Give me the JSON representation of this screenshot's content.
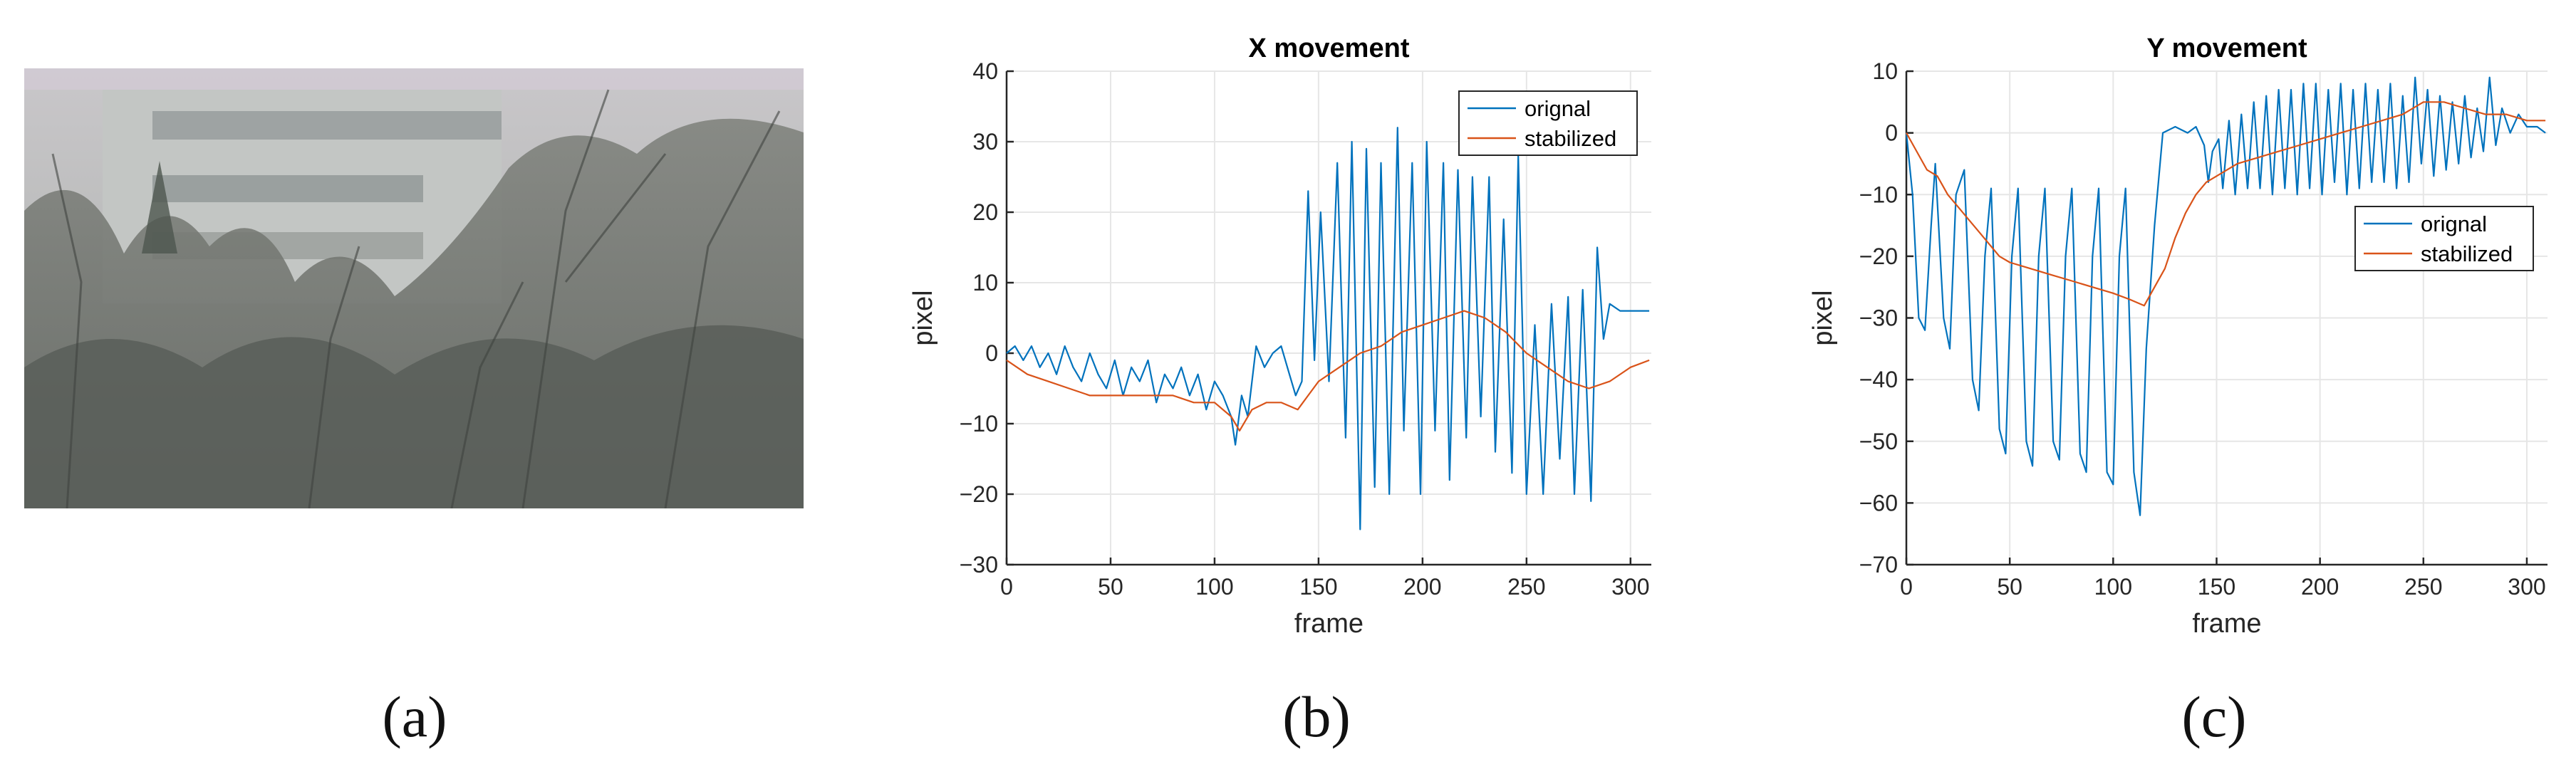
{
  "panels": {
    "a": "(a)",
    "b": "(b)",
    "c": "(c)"
  },
  "colors": {
    "original": "#0072BD",
    "stabilized": "#D95319",
    "grid": "#e6e6e6",
    "axis": "#262626"
  },
  "chart_data": [
    {
      "type": "line",
      "title": "X movement",
      "xlabel": "frame",
      "ylabel": "pixel",
      "xlim": [
        0,
        310
      ],
      "ylim": [
        -30,
        40
      ],
      "xticks": [
        0,
        50,
        100,
        150,
        200,
        250,
        300
      ],
      "yticks": [
        -30,
        -20,
        -10,
        0,
        10,
        20,
        30,
        40
      ],
      "grid": true,
      "legend_position": "top-right",
      "series": [
        {
          "name": "orignal",
          "color": "#0072BD",
          "points": [
            [
              0,
              0
            ],
            [
              4,
              1
            ],
            [
              8,
              -1
            ],
            [
              12,
              1
            ],
            [
              16,
              -2
            ],
            [
              20,
              0
            ],
            [
              24,
              -3
            ],
            [
              28,
              1
            ],
            [
              32,
              -2
            ],
            [
              36,
              -4
            ],
            [
              40,
              0
            ],
            [
              44,
              -3
            ],
            [
              48,
              -5
            ],
            [
              52,
              -1
            ],
            [
              56,
              -6
            ],
            [
              60,
              -2
            ],
            [
              64,
              -4
            ],
            [
              68,
              -1
            ],
            [
              72,
              -7
            ],
            [
              76,
              -3
            ],
            [
              80,
              -5
            ],
            [
              84,
              -2
            ],
            [
              88,
              -6
            ],
            [
              92,
              -3
            ],
            [
              96,
              -8
            ],
            [
              100,
              -4
            ],
            [
              104,
              -6
            ],
            [
              108,
              -9
            ],
            [
              110,
              -13
            ],
            [
              113,
              -6
            ],
            [
              116,
              -9
            ],
            [
              120,
              1
            ],
            [
              124,
              -2
            ],
            [
              128,
              0
            ],
            [
              132,
              1
            ],
            [
              136,
              -3
            ],
            [
              139,
              -6
            ],
            [
              142,
              -4
            ],
            [
              145,
              23
            ],
            [
              148,
              -1
            ],
            [
              151,
              20
            ],
            [
              155,
              -4
            ],
            [
              159,
              27
            ],
            [
              163,
              -12
            ],
            [
              166,
              30
            ],
            [
              170,
              -25
            ],
            [
              173,
              29
            ],
            [
              177,
              -19
            ],
            [
              180,
              27
            ],
            [
              184,
              -20
            ],
            [
              188,
              32
            ],
            [
              191,
              -11
            ],
            [
              195,
              27
            ],
            [
              199,
              -20
            ],
            [
              202,
              30
            ],
            [
              206,
              -11
            ],
            [
              210,
              27
            ],
            [
              213,
              -18
            ],
            [
              217,
              26
            ],
            [
              221,
              -12
            ],
            [
              224,
              25
            ],
            [
              228,
              -9
            ],
            [
              232,
              25
            ],
            [
              235,
              -14
            ],
            [
              239,
              19
            ],
            [
              243,
              -17
            ],
            [
              246,
              28
            ],
            [
              250,
              -20
            ],
            [
              254,
              4
            ],
            [
              258,
              -20
            ],
            [
              262,
              7
            ],
            [
              266,
              -15
            ],
            [
              270,
              8
            ],
            [
              273,
              -20
            ],
            [
              277,
              9
            ],
            [
              281,
              -21
            ],
            [
              284,
              15
            ],
            [
              287,
              2
            ],
            [
              290,
              7
            ],
            [
              295,
              6
            ],
            [
              300,
              6
            ],
            [
              309,
              6
            ]
          ]
        },
        {
          "name": "stabilized",
          "color": "#D95319",
          "points": [
            [
              0,
              -1
            ],
            [
              10,
              -3
            ],
            [
              20,
              -4
            ],
            [
              30,
              -5
            ],
            [
              40,
              -6
            ],
            [
              50,
              -6
            ],
            [
              60,
              -6
            ],
            [
              70,
              -6
            ],
            [
              80,
              -6
            ],
            [
              90,
              -7
            ],
            [
              100,
              -7
            ],
            [
              108,
              -9
            ],
            [
              112,
              -11
            ],
            [
              118,
              -8
            ],
            [
              125,
              -7
            ],
            [
              132,
              -7
            ],
            [
              140,
              -8
            ],
            [
              145,
              -6
            ],
            [
              150,
              -4
            ],
            [
              160,
              -2
            ],
            [
              170,
              0
            ],
            [
              180,
              1
            ],
            [
              190,
              3
            ],
            [
              200,
              4
            ],
            [
              210,
              5
            ],
            [
              220,
              6
            ],
            [
              230,
              5
            ],
            [
              240,
              3
            ],
            [
              250,
              0
            ],
            [
              260,
              -2
            ],
            [
              270,
              -4
            ],
            [
              280,
              -5
            ],
            [
              290,
              -4
            ],
            [
              300,
              -2
            ],
            [
              309,
              -1
            ]
          ]
        }
      ]
    },
    {
      "type": "line",
      "title": "Y movement",
      "xlabel": "frame",
      "ylabel": "pixel",
      "xlim": [
        0,
        310
      ],
      "ylim": [
        -70,
        10
      ],
      "xticks": [
        0,
        50,
        100,
        150,
        200,
        250,
        300
      ],
      "yticks": [
        -70,
        -60,
        -50,
        -40,
        -30,
        -20,
        -10,
        0,
        10
      ],
      "grid": true,
      "legend_position": "middle-right",
      "series": [
        {
          "name": "orignal",
          "color": "#0072BD",
          "points": [
            [
              0,
              0
            ],
            [
              3,
              -10
            ],
            [
              6,
              -30
            ],
            [
              9,
              -32
            ],
            [
              12,
              -15
            ],
            [
              14,
              -5
            ],
            [
              18,
              -30
            ],
            [
              21,
              -35
            ],
            [
              24,
              -10
            ],
            [
              28,
              -6
            ],
            [
              32,
              -40
            ],
            [
              35,
              -45
            ],
            [
              38,
              -20
            ],
            [
              41,
              -9
            ],
            [
              45,
              -48
            ],
            [
              48,
              -52
            ],
            [
              51,
              -20
            ],
            [
              54,
              -9
            ],
            [
              58,
              -50
            ],
            [
              61,
              -54
            ],
            [
              64,
              -20
            ],
            [
              67,
              -9
            ],
            [
              71,
              -50
            ],
            [
              74,
              -53
            ],
            [
              77,
              -20
            ],
            [
              80,
              -9
            ],
            [
              84,
              -52
            ],
            [
              87,
              -55
            ],
            [
              90,
              -20
            ],
            [
              93,
              -9
            ],
            [
              97,
              -55
            ],
            [
              100,
              -57
            ],
            [
              103,
              -20
            ],
            [
              106,
              -9
            ],
            [
              110,
              -55
            ],
            [
              113,
              -62
            ],
            [
              116,
              -35
            ],
            [
              120,
              -15
            ],
            [
              124,
              0
            ],
            [
              130,
              1
            ],
            [
              136,
              0
            ],
            [
              140,
              1
            ],
            [
              144,
              -2
            ],
            [
              146,
              -8
            ],
            [
              148,
              -3
            ],
            [
              151,
              -1
            ],
            [
              153,
              -9
            ],
            [
              156,
              2
            ],
            [
              159,
              -10
            ],
            [
              162,
              3
            ],
            [
              165,
              -9
            ],
            [
              168,
              5
            ],
            [
              171,
              -9
            ],
            [
              174,
              6
            ],
            [
              177,
              -10
            ],
            [
              180,
              7
            ],
            [
              183,
              -9
            ],
            [
              186,
              7
            ],
            [
              189,
              -10
            ],
            [
              192,
              8
            ],
            [
              195,
              -9
            ],
            [
              198,
              8
            ],
            [
              201,
              -10
            ],
            [
              204,
              7
            ],
            [
              207,
              -8
            ],
            [
              210,
              8
            ],
            [
              213,
              -10
            ],
            [
              216,
              7
            ],
            [
              219,
              -9
            ],
            [
              222,
              8
            ],
            [
              225,
              -8
            ],
            [
              228,
              7
            ],
            [
              231,
              -8
            ],
            [
              234,
              8
            ],
            [
              237,
              -9
            ],
            [
              240,
              6
            ],
            [
              243,
              -8
            ],
            [
              246,
              9
            ],
            [
              249,
              -5
            ],
            [
              252,
              7
            ],
            [
              255,
              -7
            ],
            [
              258,
              6
            ],
            [
              261,
              -6
            ],
            [
              264,
              5
            ],
            [
              267,
              -5
            ],
            [
              270,
              6
            ],
            [
              273,
              -4
            ],
            [
              276,
              4
            ],
            [
              279,
              -3
            ],
            [
              282,
              9
            ],
            [
              285,
              -2
            ],
            [
              288,
              4
            ],
            [
              292,
              0
            ],
            [
              296,
              3
            ],
            [
              300,
              1
            ],
            [
              305,
              1
            ],
            [
              309,
              0
            ]
          ]
        },
        {
          "name": "stabilized",
          "color": "#D95319",
          "points": [
            [
              0,
              0
            ],
            [
              5,
              -3
            ],
            [
              10,
              -6
            ],
            [
              15,
              -7
            ],
            [
              20,
              -10
            ],
            [
              25,
              -12
            ],
            [
              30,
              -14
            ],
            [
              35,
              -16
            ],
            [
              40,
              -18
            ],
            [
              45,
              -20
            ],
            [
              50,
              -21
            ],
            [
              60,
              -22
            ],
            [
              70,
              -23
            ],
            [
              80,
              -24
            ],
            [
              90,
              -25
            ],
            [
              100,
              -26
            ],
            [
              108,
              -27
            ],
            [
              115,
              -28
            ],
            [
              120,
              -25
            ],
            [
              125,
              -22
            ],
            [
              130,
              -17
            ],
            [
              135,
              -13
            ],
            [
              140,
              -10
            ],
            [
              145,
              -8
            ],
            [
              150,
              -7
            ],
            [
              160,
              -5
            ],
            [
              170,
              -4
            ],
            [
              180,
              -3
            ],
            [
              190,
              -2
            ],
            [
              200,
              -1
            ],
            [
              210,
              0
            ],
            [
              220,
              1
            ],
            [
              230,
              2
            ],
            [
              240,
              3
            ],
            [
              250,
              5
            ],
            [
              260,
              5
            ],
            [
              270,
              4
            ],
            [
              280,
              3
            ],
            [
              290,
              3
            ],
            [
              300,
              2
            ],
            [
              309,
              2
            ]
          ]
        }
      ]
    }
  ]
}
